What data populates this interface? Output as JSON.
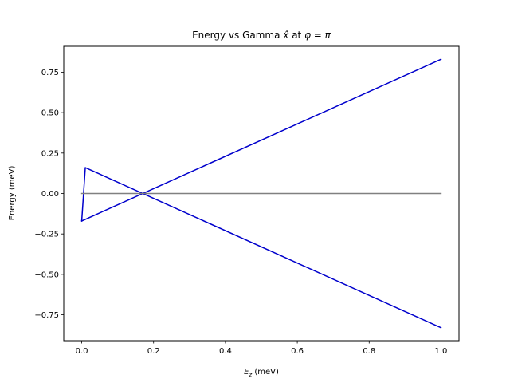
{
  "chart_data": {
    "type": "line",
    "title_prefix": "Energy vs Gamma ",
    "title_xhat": "x̂",
    "title_mid": " at ",
    "title_phi": "φ = π",
    "xlabel_var": "E",
    "xlabel_sub": "z",
    "xlabel_unit": " (meV)",
    "ylabel": "Energy (meV)",
    "xlim": [
      -0.05,
      1.05
    ],
    "ylim": [
      -0.91,
      0.91
    ],
    "x_ticks": [
      0.0,
      0.2,
      0.4,
      0.6,
      0.8,
      1.0
    ],
    "x_tick_labels": [
      "0.0",
      "0.2",
      "0.4",
      "0.6",
      "0.8",
      "1.0"
    ],
    "y_ticks": [
      -0.75,
      -0.5,
      -0.25,
      0.0,
      0.25,
      0.5,
      0.75
    ],
    "y_tick_labels": [
      "−0.75",
      "−0.50",
      "−0.25",
      "0.00",
      "0.25",
      "0.50",
      "0.75"
    ],
    "series": [
      {
        "color": "#0000cc",
        "x": [
          0.0,
          1.0
        ],
        "y": [
          -0.17,
          0.83
        ]
      },
      {
        "color": "#0000cc",
        "x": [
          0.0,
          0.01,
          1.0
        ],
        "y": [
          -0.17,
          0.16,
          -0.83
        ]
      },
      {
        "color": "#808080",
        "x": [
          0.0,
          1.0
        ],
        "y": [
          0.0,
          0.0
        ]
      }
    ]
  }
}
